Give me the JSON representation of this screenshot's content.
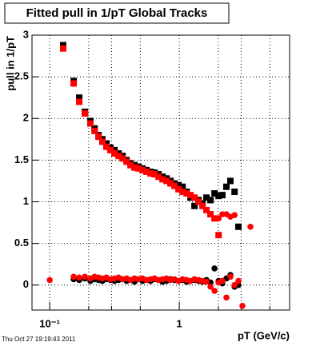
{
  "chart_data": {
    "type": "scatter",
    "title": "Fitted pull in 1/pT  Global Tracks",
    "y_label": "pull in 1/pT",
    "x_label": "pT (GeV/c)",
    "footer": "Thu Oct 27 19:19:43 2011",
    "xlog": true,
    "xlim": [
      0.073,
      7.1
    ],
    "ylim": [
      -0.3,
      3.0
    ],
    "xticks": [
      {
        "value": 0.1,
        "label": "10⁻¹"
      },
      1
    ],
    "xminorticks": [
      0.2,
      0.3,
      0.5,
      2,
      3,
      5
    ],
    "yticks": [
      0,
      0.5,
      1,
      1.5,
      2,
      2.5,
      3
    ],
    "grid": true,
    "series": [
      {
        "color": "#000000",
        "marker": "square",
        "x": [
          0.127,
          0.153,
          0.169,
          0.187,
          0.206,
          0.222,
          0.238,
          0.255,
          0.274,
          0.294,
          0.316,
          0.34,
          0.365,
          0.392,
          0.42,
          0.451,
          0.484,
          0.52,
          0.558,
          0.6,
          0.644,
          0.691,
          0.742,
          0.797,
          0.855,
          0.918,
          0.986,
          1.06,
          1.14,
          1.22,
          1.31,
          1.41,
          1.51,
          1.62,
          1.74,
          1.87,
          2.01,
          2.15,
          2.31,
          2.48,
          2.67,
          2.86
        ],
        "values": [
          2.88,
          2.45,
          2.25,
          2.08,
          1.97,
          1.88,
          1.8,
          1.75,
          1.7,
          1.65,
          1.62,
          1.58,
          1.55,
          1.5,
          1.46,
          1.44,
          1.42,
          1.4,
          1.38,
          1.36,
          1.35,
          1.33,
          1.3,
          1.28,
          1.25,
          1.22,
          1.2,
          1.18,
          1.12,
          1.05,
          0.95,
          1.02,
          0.98,
          1.05,
          1.02,
          1.1,
          1.07,
          1.08,
          1.18,
          1.25,
          1.12,
          0.7
        ]
      },
      {
        "color": "#ff0000",
        "marker": "square",
        "x": [
          0.127,
          0.153,
          0.169,
          0.187,
          0.206,
          0.222,
          0.238,
          0.255,
          0.274,
          0.294,
          0.316,
          0.34,
          0.365,
          0.392,
          0.42,
          0.451,
          0.484,
          0.52,
          0.558,
          0.6,
          0.644,
          0.691,
          0.742,
          0.797,
          0.855,
          0.918,
          0.986,
          1.06,
          1.14,
          1.22,
          1.31,
          1.41,
          1.51,
          1.62,
          1.74,
          1.87,
          2.01
        ],
        "values": [
          2.84,
          2.42,
          2.2,
          2.06,
          1.94,
          1.85,
          1.78,
          1.72,
          1.66,
          1.62,
          1.58,
          1.55,
          1.52,
          1.48,
          1.44,
          1.41,
          1.4,
          1.38,
          1.36,
          1.34,
          1.33,
          1.3,
          1.27,
          1.25,
          1.22,
          1.19,
          1.15,
          1.12,
          1.1,
          1.08,
          1.05,
          1.0,
          0.95,
          0.9,
          0.85,
          0.8,
          0.6
        ]
      },
      {
        "color": "#000000",
        "marker": "circle",
        "x": [
          0.153,
          0.169,
          0.187,
          0.206,
          0.222,
          0.238,
          0.255,
          0.274,
          0.294,
          0.316,
          0.34,
          0.365,
          0.392,
          0.42,
          0.451,
          0.484,
          0.52,
          0.558,
          0.6,
          0.644,
          0.691,
          0.742,
          0.797,
          0.855,
          0.918,
          0.986,
          1.06,
          1.14,
          1.22,
          1.31,
          1.41,
          1.51,
          1.62,
          1.74,
          1.87,
          2.01,
          2.15,
          2.31,
          2.48,
          2.67,
          2.86
        ],
        "values": [
          0.07,
          0.06,
          0.08,
          0.05,
          0.07,
          0.06,
          0.05,
          0.07,
          0.06,
          0.05,
          0.06,
          0.07,
          0.05,
          0.06,
          0.04,
          0.07,
          0.05,
          0.06,
          0.05,
          0.07,
          0.06,
          0.04,
          0.05,
          0.07,
          0.06,
          0.05,
          0.06,
          0.04,
          0.05,
          0.06,
          0.05,
          0.04,
          0.06,
          0.03,
          0.2,
          0.05,
          0.02,
          0.08,
          0.12,
          -0.02,
          0.0
        ]
      },
      {
        "color": "#ff0000",
        "marker": "circle",
        "x": [
          0.1,
          0.153,
          0.169,
          0.187,
          0.206,
          0.222,
          0.238,
          0.255,
          0.274,
          0.294,
          0.316,
          0.34,
          0.365,
          0.392,
          0.42,
          0.451,
          0.484,
          0.52,
          0.558,
          0.6,
          0.644,
          0.691,
          0.742,
          0.797,
          0.855,
          0.918,
          0.986,
          1.06,
          1.14,
          1.22,
          1.31,
          1.41,
          1.51,
          1.62,
          1.74,
          1.87,
          2.01,
          2.15,
          2.31,
          2.48,
          2.67,
          2.86,
          3.07,
          2.01,
          2.15,
          2.31,
          2.48,
          2.67,
          3.54
        ],
        "values": [
          0.06,
          0.1,
          0.09,
          0.1,
          0.08,
          0.1,
          0.09,
          0.08,
          0.09,
          0.07,
          0.08,
          0.09,
          0.07,
          0.08,
          0.06,
          0.08,
          0.07,
          0.08,
          0.06,
          0.07,
          0.08,
          0.06,
          0.07,
          0.08,
          0.06,
          0.07,
          0.05,
          0.07,
          0.06,
          0.05,
          0.07,
          0.06,
          0.05,
          0.04,
          -0.02,
          -0.07,
          0.03,
          0.05,
          -0.15,
          0.1,
          0.0,
          0.05,
          -0.25,
          0.8,
          0.85,
          0.85,
          0.82,
          0.84,
          0.7
        ]
      }
    ]
  }
}
